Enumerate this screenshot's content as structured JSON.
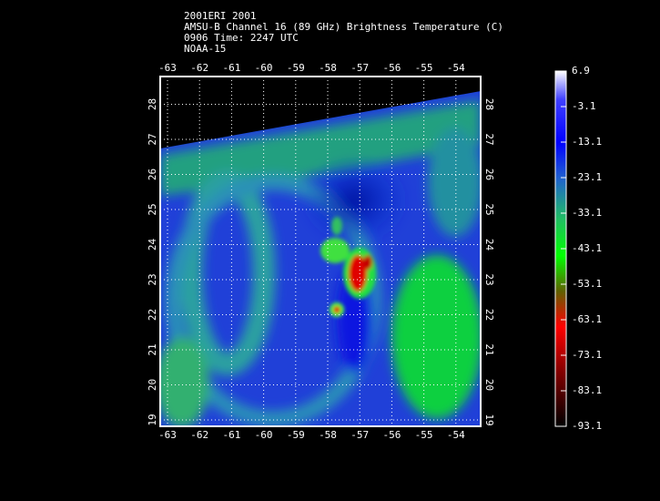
{
  "header": {
    "lines": [
      "2001ERI 2001",
      "AMSU-B Channel 16 (89 GHz) Brightness Temperature (C)",
      "0906 Time: 2247 UTC",
      "NOAA-15"
    ]
  },
  "map": {
    "lon_ticks": [
      -63,
      -62,
      -61,
      -60,
      -59,
      -58,
      -57,
      -56,
      -55,
      -54
    ],
    "lat_ticks": [
      19,
      20,
      21,
      22,
      23,
      24,
      25,
      26,
      27,
      28
    ]
  },
  "colorbar": {
    "labels": [
      6.9,
      -3.1,
      -13.1,
      -23.1,
      -33.1,
      -43.1,
      -53.1,
      -63.1,
      -73.1,
      -83.1,
      -93.1
    ]
  }
}
